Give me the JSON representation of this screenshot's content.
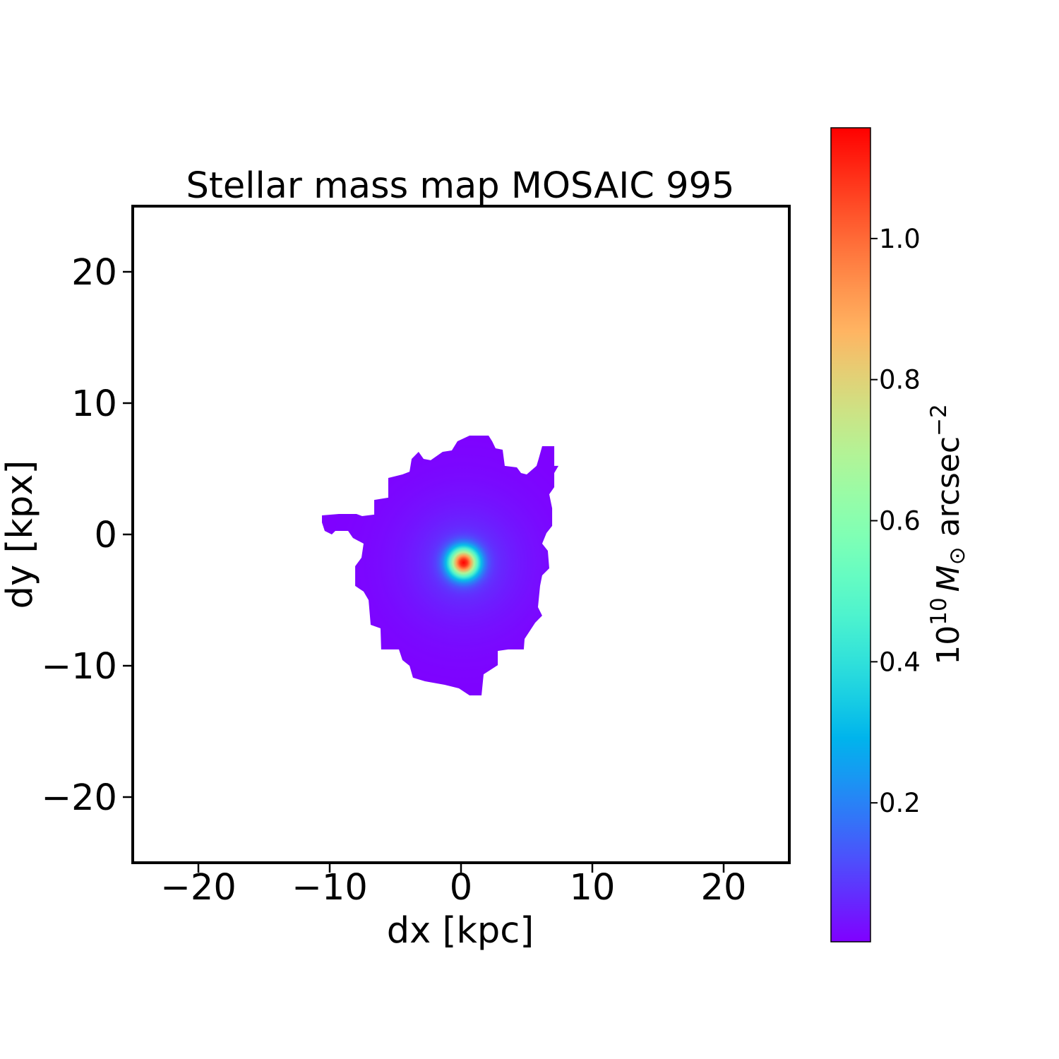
{
  "chart_data": {
    "type": "heatmap",
    "title": "Stellar mass map MOSAIC 995",
    "xlabel": "dx [kpc]",
    "ylabel": "dy [kpx]",
    "xlim": [
      -25,
      25
    ],
    "ylim": [
      -25,
      25
    ],
    "xticks": [
      -20,
      -10,
      0,
      10,
      20
    ],
    "xtick_labels": [
      "−20",
      "−10",
      "0",
      "10",
      "20"
    ],
    "yticks": [
      -20,
      -10,
      0,
      10,
      20
    ],
    "ytick_labels": [
      "−20",
      "−10",
      "0",
      "10",
      "20"
    ],
    "colormap": "rainbow",
    "colorbar": {
      "label_base": "10",
      "label_exp": "10",
      "label_symbol": "M",
      "label_sub": "⊙",
      "label_unit": " arcsec",
      "label_unit_exp": "−2",
      "vmin": 0.003,
      "vmax": 1.157,
      "ticks": [
        0.2,
        0.4,
        0.6,
        0.8,
        1.0
      ],
      "tick_labels": [
        "0.2",
        "0.4",
        "0.6",
        "0.8",
        "1.0"
      ]
    },
    "peak": {
      "x": 0.2,
      "y": -2.15,
      "value": 1.157
    },
    "outline_kpc": [
      [
        0.65,
        7.53
      ],
      [
        2.1,
        7.53
      ],
      [
        2.37,
        7.1
      ],
      [
        2.63,
        6.56
      ],
      [
        3.17,
        6.45
      ],
      [
        3.33,
        5.22
      ],
      [
        4.25,
        5.11
      ],
      [
        4.57,
        4.68
      ],
      [
        5.0,
        4.57
      ],
      [
        5.75,
        5.22
      ],
      [
        5.91,
        5.75
      ],
      [
        6.18,
        6.72
      ],
      [
        7.1,
        6.72
      ],
      [
        7.1,
        5.22
      ],
      [
        7.42,
        5.22
      ],
      [
        7.1,
        4.68
      ],
      [
        7.1,
        3.6
      ],
      [
        6.72,
        3.06
      ],
      [
        6.94,
        1.99
      ],
      [
        6.94,
        0.65
      ],
      [
        6.51,
        0.11
      ],
      [
        6.18,
        -0.7
      ],
      [
        6.61,
        -1.24
      ],
      [
        6.72,
        -2.58
      ],
      [
        6.18,
        -3.12
      ],
      [
        6.02,
        -3.92
      ],
      [
        5.86,
        -5.54
      ],
      [
        6.18,
        -6.18
      ],
      [
        5.65,
        -6.72
      ],
      [
        4.84,
        -7.96
      ],
      [
        4.78,
        -8.76
      ],
      [
        3.6,
        -8.76
      ],
      [
        2.8,
        -8.87
      ],
      [
        2.8,
        -9.95
      ],
      [
        1.72,
        -10.65
      ],
      [
        1.56,
        -12.26
      ],
      [
        0.65,
        -12.26
      ],
      [
        -0.16,
        -11.72
      ],
      [
        -1.24,
        -11.45
      ],
      [
        -2.74,
        -11.18
      ],
      [
        -3.66,
        -10.91
      ],
      [
        -3.92,
        -10.0
      ],
      [
        -4.46,
        -9.57
      ],
      [
        -4.73,
        -8.76
      ],
      [
        -6.08,
        -8.76
      ],
      [
        -6.13,
        -7.15
      ],
      [
        -6.88,
        -6.88
      ],
      [
        -7.04,
        -5.0
      ],
      [
        -7.42,
        -4.35
      ],
      [
        -8.06,
        -3.92
      ],
      [
        -8.06,
        -2.42
      ],
      [
        -7.58,
        -1.77
      ],
      [
        -7.42,
        -0.7
      ],
      [
        -8.23,
        -0.27
      ],
      [
        -8.6,
        0.27
      ],
      [
        -9.57,
        0.27
      ],
      [
        -9.84,
        0.0
      ],
      [
        -10.38,
        0.27
      ],
      [
        -10.59,
        0.91
      ],
      [
        -10.59,
        1.45
      ],
      [
        -9.3,
        1.56
      ],
      [
        -7.96,
        1.56
      ],
      [
        -7.53,
        1.4
      ],
      [
        -6.61,
        1.51
      ],
      [
        -6.61,
        2.63
      ],
      [
        -5.54,
        2.8
      ],
      [
        -5.54,
        4.3
      ],
      [
        -4.46,
        4.57
      ],
      [
        -3.92,
        4.78
      ],
      [
        -3.76,
        5.75
      ],
      [
        -3.23,
        6.29
      ],
      [
        -2.85,
        5.75
      ],
      [
        -2.31,
        5.65
      ],
      [
        -1.4,
        6.29
      ],
      [
        -0.7,
        6.4
      ],
      [
        -0.27,
        7.1
      ]
    ]
  }
}
